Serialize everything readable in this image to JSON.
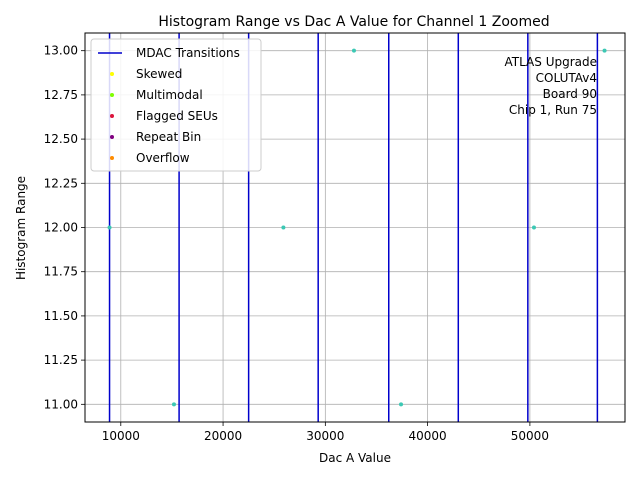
{
  "chart_data": {
    "type": "scatter",
    "title": "Histogram Range vs Dac A Value for Channel 1 Zoomed",
    "xlabel": "Dac A Value",
    "ylabel": "Histogram Range",
    "xlim": [
      6500,
      59300
    ],
    "ylim": [
      10.9,
      13.1
    ],
    "xticks": [
      {
        "value": 10000,
        "label": "10000"
      },
      {
        "value": 20000,
        "label": "20000"
      },
      {
        "value": 30000,
        "label": "30000"
      },
      {
        "value": 40000,
        "label": "40000"
      },
      {
        "value": 50000,
        "label": "50000"
      }
    ],
    "yticks": [
      {
        "value": 11.0,
        "label": "11.00"
      },
      {
        "value": 11.25,
        "label": "11.25"
      },
      {
        "value": 11.5,
        "label": "11.50"
      },
      {
        "value": 11.75,
        "label": "11.75"
      },
      {
        "value": 12.0,
        "label": "12.00"
      },
      {
        "value": 12.25,
        "label": "12.25"
      },
      {
        "value": 12.5,
        "label": "12.50"
      },
      {
        "value": 12.75,
        "label": "12.75"
      },
      {
        "value": 13.0,
        "label": "13.00"
      }
    ],
    "grid": true,
    "legend_position": "upper-left",
    "mdac_transitions": {
      "name": "MDAC Transitions",
      "color": "#0000cc",
      "x": [
        8900,
        15700,
        22500,
        29300,
        36200,
        43000,
        49800,
        56600
      ]
    },
    "points": {
      "color": "#3cc8b4",
      "x": [
        8900,
        15200,
        25900,
        32800,
        37400,
        50400,
        57300
      ],
      "y": [
        12.0,
        11.0,
        12.0,
        13.0,
        11.0,
        12.0,
        13.0
      ]
    },
    "series": [
      {
        "name": "Skewed",
        "color": "#ffff00"
      },
      {
        "name": "Multimodal",
        "color": "#7fff00"
      },
      {
        "name": "Flagged SEUs",
        "color": "#dc143c"
      },
      {
        "name": "Repeat Bin",
        "color": "#800080"
      },
      {
        "name": "Overflow",
        "color": "#ff8c00"
      }
    ],
    "annotation": [
      "ATLAS Upgrade",
      "COLUTAv4",
      "Board 90",
      "Chip 1, Run 75"
    ]
  }
}
